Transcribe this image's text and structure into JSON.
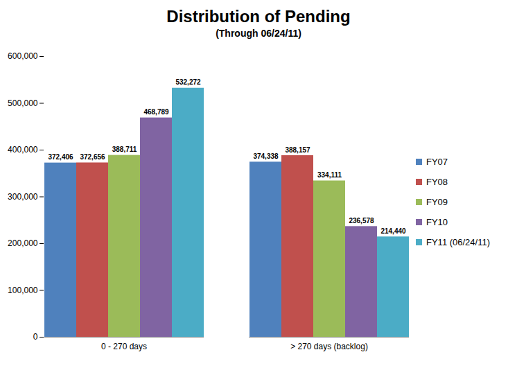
{
  "chart_data": {
    "type": "bar",
    "title": "Distribution of Pending",
    "subtitle": "(Through 06/24/11)",
    "categories": [
      "0 - 270 days",
      "> 270 days (backlog)"
    ],
    "series": [
      {
        "name": "FY07",
        "color": "#4F81BD",
        "values": [
          372406,
          374338
        ],
        "value_labels": [
          "372,406",
          "374,338"
        ]
      },
      {
        "name": "FY08",
        "color": "#C0504D",
        "values": [
          372656,
          388157
        ],
        "value_labels": [
          "372,656",
          "388,157"
        ]
      },
      {
        "name": "FY09",
        "color": "#9BBB59",
        "values": [
          388711,
          334111
        ],
        "value_labels": [
          "388,711",
          "334,111"
        ]
      },
      {
        "name": "FY10",
        "color": "#8064A2",
        "values": [
          468789,
          236578
        ],
        "value_labels": [
          "468,789",
          "236,578"
        ]
      },
      {
        "name": "FY11 (06/24/11)",
        "color": "#4BACC6",
        "values": [
          532272,
          214440
        ],
        "value_labels": [
          "532,272",
          "214,440"
        ]
      }
    ],
    "ylim": [
      0,
      600000
    ],
    "yticks": [
      0,
      {
        "value": 100000,
        "label": "100,000"
      },
      {
        "value": 200000,
        "label": "200,000"
      },
      {
        "value": 300000,
        "label": "300,000"
      },
      {
        "value": 400000,
        "label": "400,000"
      },
      {
        "value": 500000,
        "label": "500,000"
      },
      {
        "value": 600000,
        "label": "600,000"
      }
    ],
    "grid": false,
    "legend": "right",
    "data_labels": true
  }
}
